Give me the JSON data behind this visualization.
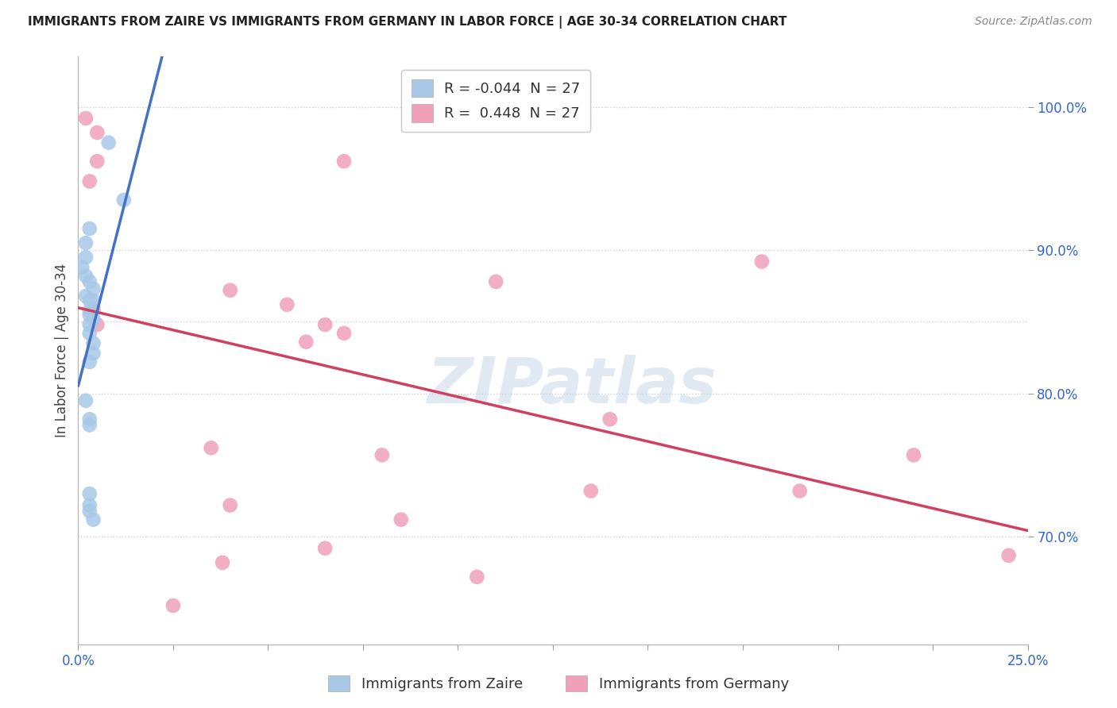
{
  "title": "IMMIGRANTS FROM ZAIRE VS IMMIGRANTS FROM GERMANY IN LABOR FORCE | AGE 30-34 CORRELATION CHART",
  "source": "Source: ZipAtlas.com",
  "ylabel": "In Labor Force | Age 30-34",
  "xlim": [
    0.0,
    0.25
  ],
  "ylim": [
    0.625,
    1.035
  ],
  "yticks": [
    0.7,
    0.8,
    0.9,
    1.0
  ],
  "ytick_labels": [
    "70.0%",
    "80.0%",
    "90.0%",
    "100.0%"
  ],
  "zaire_color": "#a8c8e8",
  "germany_color": "#f0a0b8",
  "zaire_line_color": "#4472c4",
  "germany_line_color": "#d04060",
  "zaire_x": [
    0.008,
    0.012,
    0.003,
    0.002,
    0.002,
    0.001,
    0.002,
    0.003,
    0.004,
    0.002,
    0.003,
    0.003,
    0.003,
    0.004,
    0.003,
    0.003,
    0.004,
    0.004,
    0.003,
    0.002,
    0.003,
    0.003,
    0.004,
    0.003,
    0.003,
    0.003,
    0.004
  ],
  "zaire_y": [
    0.975,
    0.935,
    0.915,
    0.905,
    0.895,
    0.888,
    0.882,
    0.878,
    0.873,
    0.868,
    0.865,
    0.858,
    0.855,
    0.852,
    0.848,
    0.842,
    0.835,
    0.828,
    0.822,
    0.795,
    0.782,
    0.778,
    0.865,
    0.73,
    0.722,
    0.718,
    0.712
  ],
  "germany_x": [
    0.002,
    0.07,
    0.11,
    0.04,
    0.055,
    0.18,
    0.065,
    0.005,
    0.003,
    0.005,
    0.004,
    0.005,
    0.07,
    0.06,
    0.14,
    0.035,
    0.08,
    0.22,
    0.135,
    0.19,
    0.04,
    0.085,
    0.065,
    0.245,
    0.038,
    0.105,
    0.025
  ],
  "germany_y": [
    0.992,
    0.962,
    0.878,
    0.872,
    0.862,
    0.892,
    0.848,
    0.962,
    0.948,
    0.982,
    0.858,
    0.848,
    0.842,
    0.836,
    0.782,
    0.762,
    0.757,
    0.757,
    0.732,
    0.732,
    0.722,
    0.712,
    0.692,
    0.687,
    0.682,
    0.672,
    0.652
  ],
  "watermark": "ZIPatlas",
  "background_color": "#ffffff",
  "grid_color": "#d0d0d0",
  "r_zaire": -0.044,
  "r_germany": 0.448,
  "n": 27,
  "legend_label_zaire": "Immigrants from Zaire",
  "legend_label_germany": "Immigrants from Germany",
  "zaire_line_solid_end": 0.06,
  "xtick_count": 10
}
